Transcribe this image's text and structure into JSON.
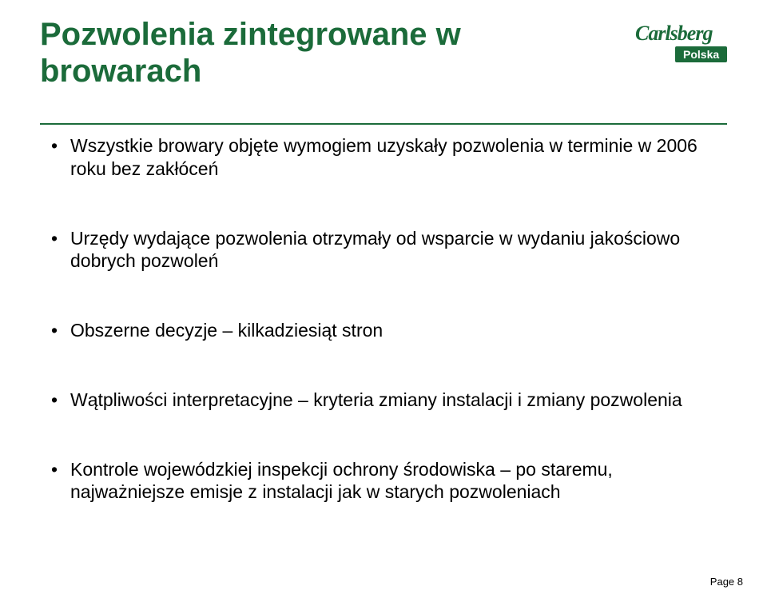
{
  "title": "Pozwolenia zintegrowane w browarach",
  "logo": {
    "script": "Carlsberg",
    "subtext": "Polska"
  },
  "bullets": [
    "Wszystkie browary objęte wymogiem uzyskały pozwolenia w terminie w 2006 roku bez zakłóceń",
    "Urzędy wydające pozwolenia otrzymały od wsparcie w wydaniu jakościowo dobrych pozwoleń",
    "Obszerne decyzje – kilkadziesiąt stron",
    "Wątpliwości interpretacyjne – kryteria zmiany instalacji i zmiany pozwolenia",
    "Kontrole wojewódzkiej inspekcji ochrony środowiska – po staremu, najważniejsze emisje z instalacji jak w starych pozwoleniach"
  ],
  "pageLabel": "Page 8",
  "colors": {
    "brand_green": "#1b6b3a",
    "text": "#000000",
    "background": "#ffffff"
  },
  "typography": {
    "title_fontsize": 40,
    "title_weight": "bold",
    "bullet_fontsize": 23,
    "page_fontsize": 13
  }
}
